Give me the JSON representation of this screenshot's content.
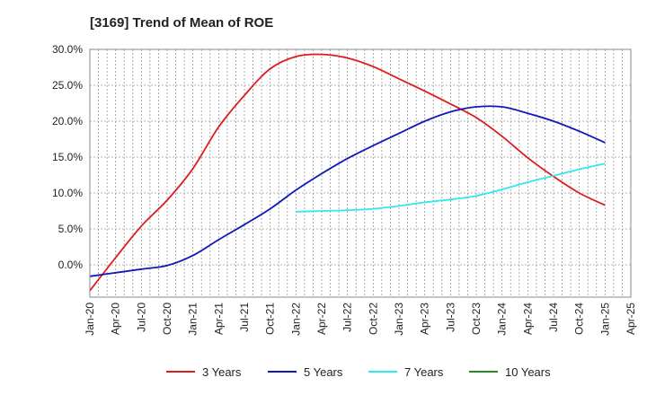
{
  "chart_data": {
    "type": "line",
    "title": "[3169]  Trend of Mean of ROE",
    "xlabel": "",
    "ylabel": "",
    "x_ticks": [
      "Jan-20",
      "Apr-20",
      "Jul-20",
      "Oct-20",
      "Jan-21",
      "Apr-21",
      "Jul-21",
      "Oct-21",
      "Jan-22",
      "Apr-22",
      "Jul-22",
      "Oct-22",
      "Jan-23",
      "Apr-23",
      "Jul-23",
      "Oct-23",
      "Jan-24",
      "Apr-24",
      "Jul-24",
      "Oct-24",
      "Jan-25",
      "Apr-25"
    ],
    "y_ticks": [
      0,
      5,
      10,
      15,
      20,
      25,
      30
    ],
    "y_tick_labels": [
      "0.0%",
      "5.0%",
      "10.0%",
      "15.0%",
      "20.0%",
      "25.0%",
      "30.0%"
    ],
    "ylim": [
      -4.5,
      30
    ],
    "grid": true,
    "legend_position": "bottom",
    "series": [
      {
        "name": "3 Years",
        "color": "#dd1c1c",
        "points": [
          [
            "Jan-20",
            -3.6
          ],
          [
            "Apr-20",
            1.0
          ],
          [
            "Jul-20",
            5.4
          ],
          [
            "Oct-20",
            9.0
          ],
          [
            "Jan-21",
            13.4
          ],
          [
            "Apr-21",
            19.2
          ],
          [
            "Jul-21",
            23.6
          ],
          [
            "Oct-21",
            27.3
          ],
          [
            "Jan-22",
            29.0
          ],
          [
            "Apr-22",
            29.3
          ],
          [
            "Jul-22",
            28.8
          ],
          [
            "Oct-22",
            27.6
          ],
          [
            "Jan-23",
            25.9
          ],
          [
            "Apr-23",
            24.2
          ],
          [
            "Jul-23",
            22.4
          ],
          [
            "Oct-23",
            20.5
          ],
          [
            "Jan-24",
            17.9
          ],
          [
            "Apr-24",
            14.9
          ],
          [
            "Jul-24",
            12.3
          ],
          [
            "Oct-24",
            10.0
          ],
          [
            "Jan-25",
            8.3
          ]
        ]
      },
      {
        "name": "5 Years",
        "color": "#1018b8",
        "points": [
          [
            "Jan-20",
            -1.6
          ],
          [
            "Apr-20",
            -1.1
          ],
          [
            "Jul-20",
            -0.6
          ],
          [
            "Oct-20",
            -0.1
          ],
          [
            "Jan-21",
            1.3
          ],
          [
            "Apr-21",
            3.5
          ],
          [
            "Jul-21",
            5.6
          ],
          [
            "Oct-21",
            7.8
          ],
          [
            "Jan-22",
            10.4
          ],
          [
            "Apr-22",
            12.7
          ],
          [
            "Jul-22",
            14.8
          ],
          [
            "Oct-22",
            16.6
          ],
          [
            "Jan-23",
            18.3
          ],
          [
            "Apr-23",
            20.0
          ],
          [
            "Jul-23",
            21.3
          ],
          [
            "Oct-23",
            22.0
          ],
          [
            "Jan-24",
            22.0
          ],
          [
            "Apr-24",
            21.1
          ],
          [
            "Jul-24",
            20.0
          ],
          [
            "Oct-24",
            18.6
          ],
          [
            "Jan-25",
            17.0
          ]
        ]
      },
      {
        "name": "7 Years",
        "color": "#33e8e8",
        "points": [
          [
            "Jan-22",
            7.4
          ],
          [
            "Apr-22",
            7.5
          ],
          [
            "Jul-22",
            7.6
          ],
          [
            "Oct-22",
            7.8
          ],
          [
            "Jan-23",
            8.2
          ],
          [
            "Apr-23",
            8.7
          ],
          [
            "Jul-23",
            9.1
          ],
          [
            "Oct-23",
            9.6
          ],
          [
            "Jan-24",
            10.5
          ],
          [
            "Apr-24",
            11.5
          ],
          [
            "Jul-24",
            12.4
          ],
          [
            "Oct-24",
            13.3
          ],
          [
            "Jan-25",
            14.1
          ]
        ]
      },
      {
        "name": "10 Years",
        "color": "#1e8c1e",
        "points": []
      }
    ]
  }
}
